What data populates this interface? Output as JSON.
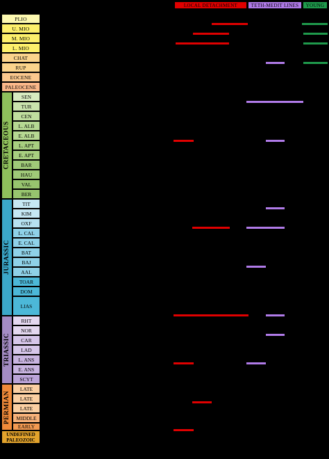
{
  "legend": {
    "local": {
      "label": "LOCAL DETACHMENT",
      "color": "#e00000"
    },
    "tethys": {
      "label": "TETH-MEDIT LINES",
      "color": "#b07be8"
    },
    "young": {
      "label": "YOUNG",
      "color": "#1f9a4c"
    }
  },
  "cenozoic": [
    {
      "label": "PLIO",
      "color": "#fdf9b0"
    },
    {
      "label": "U. MIO",
      "color": "#fdf06b"
    },
    {
      "label": "M. MIO",
      "color": "#fdf06b"
    },
    {
      "label": "L. MIO",
      "color": "#fdf06b"
    },
    {
      "label": "CHAT",
      "color": "#fbd48c"
    },
    {
      "label": "RUP",
      "color": "#fbd48c"
    },
    {
      "label": "EOCENE",
      "color": "#fbc88e"
    },
    {
      "label": "PALEOCENE",
      "color": "#fbb88a"
    }
  ],
  "cretaceous": {
    "era": "CRETACEOUS",
    "color": "#8fc05c",
    "stages": [
      {
        "label": "SEN",
        "color": "#d8ebc0"
      },
      {
        "label": "TUR",
        "color": "#c9e3ad"
      },
      {
        "label": "CEN",
        "color": "#c0de9f"
      },
      {
        "label": "L. ALB",
        "color": "#b6d893"
      },
      {
        "label": "E. ALB",
        "color": "#b6d893"
      },
      {
        "label": "L. APT",
        "color": "#a8cf80"
      },
      {
        "label": "E. APT",
        "color": "#a8cf80"
      },
      {
        "label": "BAR",
        "color": "#9fc978"
      },
      {
        "label": "HAU",
        "color": "#9fc978"
      },
      {
        "label": "VAL",
        "color": "#97c46e"
      },
      {
        "label": "BER",
        "color": "#97c46e"
      }
    ]
  },
  "jurassic": {
    "era": "JURASSIC",
    "color": "#3ba7c8",
    "stages": [
      {
        "label": "TIT",
        "color": "#c6e8f4"
      },
      {
        "label": "KIM",
        "color": "#c6e8f4"
      },
      {
        "label": "OXF",
        "color": "#b6e1f1"
      },
      {
        "label": "L. CAL",
        "color": "#8fd1e8"
      },
      {
        "label": "E. CAL",
        "color": "#8fd1e8"
      },
      {
        "label": "BAT",
        "color": "#8fd1e8"
      },
      {
        "label": "BAJ",
        "color": "#8fd1e8"
      },
      {
        "label": "AAL",
        "color": "#8fd1e8"
      },
      {
        "label": "TOAR",
        "color": "#4cb8d8"
      },
      {
        "label": "DOM",
        "color": "#4cb8d8"
      },
      {
        "label": "LIAS",
        "color": "#4cb8d8"
      }
    ]
  },
  "triassic": {
    "era": "TRIASSIC",
    "color": "#a48cc4",
    "stages": [
      {
        "label": "RHT",
        "color": "#e4d8f0"
      },
      {
        "label": "NOR",
        "color": "#e4d8f0"
      },
      {
        "label": "CAR",
        "color": "#d6c6ea"
      },
      {
        "label": "LAD",
        "color": "#d6c6ea"
      },
      {
        "label": "L. ANS",
        "color": "#c8b4e0"
      },
      {
        "label": "E. ANS",
        "color": "#c8b4e0"
      },
      {
        "label": "SCYT",
        "color": "#bba4d8"
      }
    ]
  },
  "permian": {
    "era": "PERMIAN",
    "color": "#ef8a3a",
    "stages": [
      {
        "label": "LATE",
        "color": "#fbcfa2"
      },
      {
        "label": "LATE",
        "color": "#fbcfa2"
      },
      {
        "label": "LATE",
        "color": "#fbcfa2"
      },
      {
        "label": "MIDDLE",
        "color": "#f8b27a"
      },
      {
        "label": "EARLY",
        "color": "#f39a52"
      }
    ]
  },
  "undefined": {
    "line1": "UNDEFINED",
    "line2": "PALEOZOIC"
  }
}
